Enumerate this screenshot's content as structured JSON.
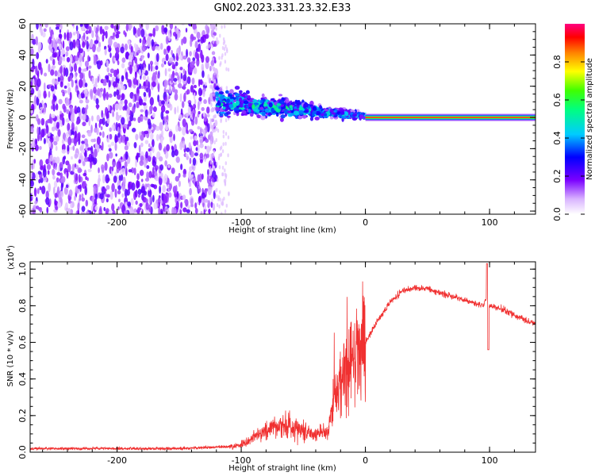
{
  "title": "GN02.2023.331.23.32.E33",
  "chart_data": [
    {
      "type": "heatmap",
      "xlabel": "Height of straight line (km)",
      "ylabel": "Frequency (Hz)",
      "xlim": [
        -270,
        137
      ],
      "ylim": [
        -62,
        60
      ],
      "xticks": [
        -200,
        -100,
        0,
        100
      ],
      "yticks": [
        -60,
        -40,
        -20,
        0,
        20,
        40,
        60
      ],
      "xtick_labels": [
        "-200",
        "-100",
        "0",
        "100"
      ],
      "ytick_labels": [
        "-60",
        "-40",
        "-20",
        "0",
        "20",
        "40",
        "60"
      ],
      "grid": false,
      "colorbar": {
        "label": "Normalized spectral amplitude",
        "range": [
          0,
          1
        ],
        "ticks": [
          0,
          0.2,
          0.4,
          0.6,
          0.8
        ],
        "tick_labels": [
          "0.0",
          "0.2",
          "0.4",
          "0.6",
          "0.8"
        ],
        "colormap": "rainbow"
      },
      "regions": [
        {
          "x_range": [
            -270,
            -120
          ],
          "y_range": [
            -62,
            60
          ],
          "description": "broadband noise",
          "amplitude": 0.15
        },
        {
          "x_range": [
            -120,
            0
          ],
          "y_center_start": 10,
          "y_center_end": 1,
          "description": "converging signal band",
          "amplitude": 0.4
        },
        {
          "x_range": [
            0,
            137
          ],
          "y_center": 0,
          "description": "steady narrow signal at 0 Hz",
          "amplitude": 0.9
        }
      ]
    },
    {
      "type": "line",
      "xlabel": "Height of straight line (km)",
      "ylabel": "SNR (10 * v/v)",
      "y_multiplier": "(x10",
      "y_multiplier_exp": "4",
      "xlim": [
        -270,
        137
      ],
      "ylim": [
        0,
        1.04
      ],
      "xticks": [
        -200,
        -100,
        0,
        100
      ],
      "yticks": [
        0,
        0.2,
        0.4,
        0.6,
        0.8,
        1.0
      ],
      "xtick_labels": [
        "-200",
        "-100",
        "0",
        "100"
      ],
      "ytick_labels": [
        "0.0",
        "0.2",
        "0.4",
        "0.6",
        "0.8",
        "1.0"
      ],
      "grid": false,
      "series": [
        {
          "color": "#f03030",
          "x": [
            -270,
            -200,
            -150,
            -110,
            -100,
            -90,
            -80,
            -70,
            -60,
            -50,
            -40,
            -30,
            -25,
            -20,
            -15,
            -10,
            -5,
            0,
            10,
            20,
            30,
            40,
            50,
            60,
            70,
            80,
            90,
            95,
            98,
            100,
            110,
            120,
            137
          ],
          "y": [
            0.02,
            0.02,
            0.02,
            0.03,
            0.04,
            0.08,
            0.12,
            0.15,
            0.14,
            0.12,
            0.1,
            0.12,
            0.3,
            0.4,
            0.45,
            0.5,
            0.55,
            0.6,
            0.72,
            0.82,
            0.88,
            0.9,
            0.89,
            0.87,
            0.85,
            0.83,
            0.81,
            0.8,
            0.85,
            0.8,
            0.78,
            0.75,
            0.7
          ]
        }
      ]
    }
  ]
}
